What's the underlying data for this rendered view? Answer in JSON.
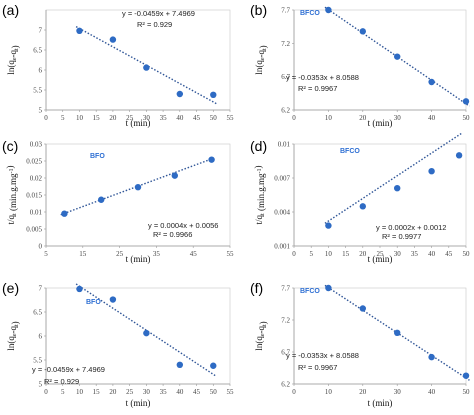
{
  "colors": {
    "point": "#2e6bc4",
    "trend": "#2f5597",
    "axis": "#9a9a9a",
    "frame": "#c8c8c8"
  },
  "chart_data": [
    {
      "panel": "(a)",
      "type": "scatter",
      "xlabel": "t (min)",
      "ylabel": "ln(q<sub>e</sub>-q<sub>t</sub>)",
      "series_name": "",
      "xlim": [
        0,
        55
      ],
      "ylim": [
        5,
        7.5
      ],
      "xticks": [
        "0",
        "5",
        "10",
        "15",
        "20",
        "25",
        "30",
        "35",
        "40",
        "45",
        "50",
        "55"
      ],
      "yticks": [
        "5",
        "5.5",
        "6",
        "6.5",
        "7"
      ],
      "x": [
        10,
        20,
        30,
        40,
        50
      ],
      "y": [
        6.98,
        6.76,
        6.06,
        5.4,
        5.38
      ],
      "trend": {
        "slope": -0.0459,
        "intercept": 7.4969,
        "x_range": [
          9,
          51
        ]
      },
      "equation": "y = -0.0459x + 7.4969",
      "r2": "R² = 0.929"
    },
    {
      "panel": "(b)",
      "type": "scatter",
      "xlabel": "t (min)",
      "ylabel": "ln(q<sub>e</sub>-q<sub>t</sub>)",
      "series_name": "BFCO",
      "xlim": [
        0,
        50
      ],
      "ylim": [
        6.2,
        7.7
      ],
      "xticks": [
        "0",
        "10",
        "20",
        "30",
        "40",
        "50"
      ],
      "yticks": [
        "6.2",
        "6.7",
        "7.2",
        "7.7"
      ],
      "x": [
        10,
        20,
        30,
        40,
        50
      ],
      "y": [
        7.7,
        7.38,
        7.0,
        6.62,
        6.33
      ],
      "trend": {
        "slope": -0.0353,
        "intercept": 8.0588,
        "x_range": [
          9,
          51
        ]
      },
      "equation": "y = -0.0353x + 8.0588",
      "r2": "R² = 0.9967"
    },
    {
      "panel": "(c)",
      "type": "scatter",
      "xlabel": "t (min)",
      "ylabel": "t/q<sub>t</sub> (min.g.mg<sup>-1</sup>)",
      "series_name": "BFO",
      "xlim": [
        5,
        55
      ],
      "ylim": [
        0,
        0.03
      ],
      "xticks": [
        "5",
        "15",
        "25",
        "35",
        "45",
        "55"
      ],
      "yticks": [
        "0",
        "0.005",
        "0.01",
        "0.015",
        "0.02",
        "0.025",
        "0.03"
      ],
      "x": [
        10,
        20,
        30,
        40,
        50
      ],
      "y": [
        0.0095,
        0.0136,
        0.0173,
        0.0207,
        0.0254
      ],
      "trend": {
        "slope": 0.0004,
        "intercept": 0.0056,
        "x_range": [
          9,
          51
        ]
      },
      "equation": "y = 0.0004x + 0.0056",
      "r2": "R² = 0.9966"
    },
    {
      "panel": "(d)",
      "type": "scatter",
      "xlabel": "t (min)",
      "ylabel": "t/q<sub>t</sub> (min.g.mg<sup>-1</sup>)",
      "series_name": "BFCO",
      "xlim": [
        0,
        50
      ],
      "ylim": [
        0.001,
        0.01
      ],
      "xticks": [
        "0",
        "5",
        "10",
        "15",
        "20",
        "25",
        "30",
        "35",
        "40",
        "45",
        "50"
      ],
      "yticks": [
        "0.001",
        "0.004",
        "0.007",
        "0.01"
      ],
      "x": [
        10,
        20,
        30,
        40,
        48
      ],
      "y": [
        0.0028,
        0.0045,
        0.0061,
        0.0076,
        0.009
      ],
      "trend": {
        "slope": 0.0002,
        "intercept": 0.0012,
        "x_range": [
          9,
          49
        ]
      },
      "equation": "y = 0.0002x + 0.0012",
      "r2": "R² = 0.9977"
    },
    {
      "panel": "(e)",
      "type": "scatter",
      "xlabel": "t (min)",
      "ylabel": "ln(q<sub>e</sub>-q<sub>t</sub>)",
      "series_name": "BFO",
      "xlim": [
        0,
        55
      ],
      "ylim": [
        5,
        7
      ],
      "xticks": [
        "0",
        "5",
        "10",
        "15",
        "20",
        "25",
        "30",
        "35",
        "40",
        "45",
        "50",
        "55"
      ],
      "yticks": [
        "5",
        "5.5",
        "6",
        "6.5",
        "7"
      ],
      "x": [
        10,
        20,
        30,
        40,
        50
      ],
      "y": [
        6.98,
        6.76,
        6.06,
        5.4,
        5.38
      ],
      "trend": {
        "slope": -0.0459,
        "intercept": 7.4969,
        "x_range": [
          9,
          51
        ]
      },
      "equation": "y = -0.0459x + 7.4969",
      "r2": "R² = 0.929"
    },
    {
      "panel": "(f)",
      "type": "scatter",
      "xlabel": "t (min)",
      "ylabel": "ln(q<sub>e</sub>-q<sub>t</sub>)",
      "series_name": "BFCO",
      "xlim": [
        0,
        50
      ],
      "ylim": [
        6.2,
        7.7
      ],
      "xticks": [
        "0",
        "10",
        "20",
        "30",
        "40",
        "50"
      ],
      "yticks": [
        "6.2",
        "6.7",
        "7.2",
        "7.7"
      ],
      "x": [
        10,
        20,
        30,
        40,
        50
      ],
      "y": [
        7.7,
        7.38,
        7.0,
        6.62,
        6.33
      ],
      "trend": {
        "slope": -0.0353,
        "intercept": 8.0588,
        "x_range": [
          9,
          51
        ]
      },
      "equation": "y = -0.0353x + 8.0588",
      "r2": "R² = 0.9967"
    }
  ]
}
